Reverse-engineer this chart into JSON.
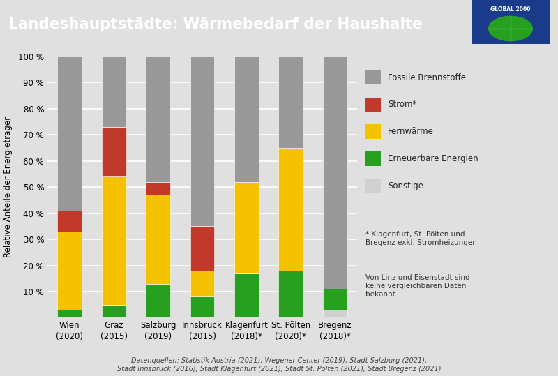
{
  "title": "Landeshauptstädte: Wärmebedarf der Haushalte",
  "title_color": "#ffffff",
  "header_bg": "#6ab023",
  "chart_bg": "#e0e0e0",
  "ylabel": "Relative Anteile der Energieträger",
  "categories": [
    "Wien\n(2020)",
    "Graz\n(2015)",
    "Salzburg\n(2019)",
    "Innsbruck\n(2015)",
    "Klagenfurt\n(2018)*",
    "St. Pölten\n(2020)*",
    "Bregenz\n(2018)*"
  ],
  "series": {
    "Sonstige": [
      0,
      0,
      0,
      0,
      0,
      0,
      3
    ],
    "Erneuerbare Energien": [
      3,
      5,
      13,
      8,
      17,
      18,
      8
    ],
    "Fernwärme": [
      30,
      49,
      34,
      10,
      35,
      47,
      0
    ],
    "Strom*": [
      8,
      19,
      5,
      17,
      0,
      0,
      0
    ],
    "Fossile Brennstoffe": [
      59,
      27,
      48,
      65,
      48,
      35,
      89
    ]
  },
  "colors": {
    "Fossile Brennstoffe": "#999999",
    "Strom*": "#c0392b",
    "Fernwärme": "#f5c200",
    "Erneuerbare Energien": "#27a020",
    "Sonstige": "#d0d0d0"
  },
  "legend_order": [
    "Fossile Brennstoffe",
    "Strom*",
    "Fernwärme",
    "Erneuerbare Energien",
    "Sonstige"
  ],
  "footnote1": "* Klagenfurt, St. Pölten und\nBregenz exkl. Stromheizungen",
  "footnote2": "Von Linz und Eisenstadt sind\nkeine vergleichbaren Daten\nbekannt.",
  "source_text": "Datenquellen: Statistik Austria (2021), Wegener Center (2019), Stadt Salzburg (2021),\nStadt Innsbruck (2016), Stadt Klagenfurt (2021), Stadt St. Pölten (2021), Stadt Bregenz (2021)",
  "bar_width": 0.55,
  "ylim": [
    0,
    100
  ],
  "yticks": [
    10,
    20,
    30,
    40,
    50,
    60,
    70,
    80,
    90,
    100
  ]
}
